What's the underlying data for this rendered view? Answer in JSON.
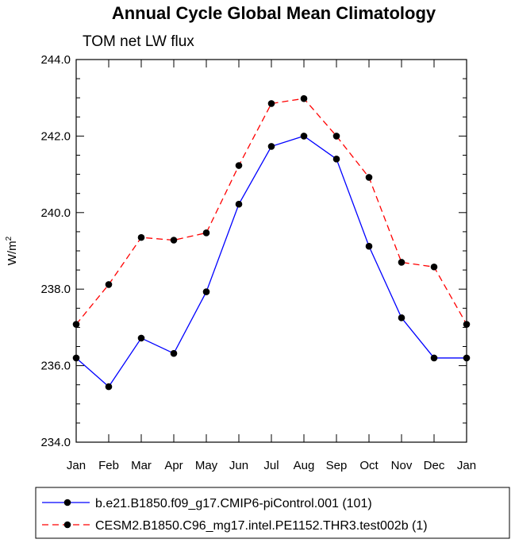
{
  "chart_data": {
    "type": "line",
    "title": "Annual Cycle Global Mean Climatology",
    "subtitle": "TOM net LW flux",
    "ylabel": "W/m",
    "ylabel_superscript": "2",
    "categories": [
      "Jan",
      "Feb",
      "Mar",
      "Apr",
      "May",
      "Jun",
      "Jul",
      "Aug",
      "Sep",
      "Oct",
      "Nov",
      "Dec",
      "Jan"
    ],
    "ylim": [
      234.0,
      244.0
    ],
    "yticks": [
      "234.0",
      "236.0",
      "238.0",
      "240.0",
      "242.0",
      "244.0"
    ],
    "legend_position": "bottom",
    "series": [
      {
        "name": "b.e21.B1850.f09_g17.CMIP6-piControl.001 (101)",
        "color": "#0000ff",
        "style": "solid",
        "values": [
          236.2,
          235.45,
          236.72,
          236.32,
          237.93,
          240.22,
          241.73,
          242.0,
          241.4,
          239.12,
          237.25,
          236.2,
          236.2
        ]
      },
      {
        "name": "CESM2.B1850.C96_mg17.intel.PE1152.THR3.test002b (1)",
        "color": "#ff0000",
        "style": "dashed",
        "values": [
          237.08,
          238.12,
          239.35,
          239.28,
          239.47,
          241.23,
          242.85,
          242.98,
          242.0,
          240.92,
          238.7,
          238.58,
          237.08
        ]
      }
    ]
  }
}
